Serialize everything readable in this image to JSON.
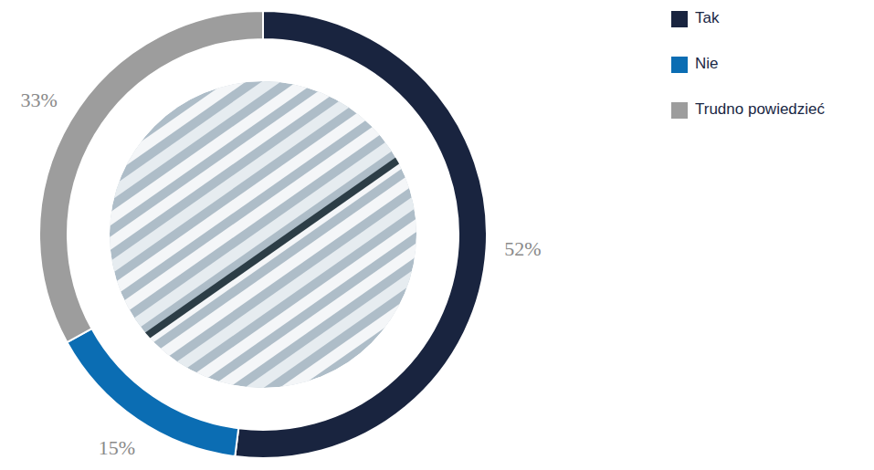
{
  "chart_data": {
    "type": "pie",
    "categories": [
      "Tak",
      "Nie",
      "Trudno powiedzieć"
    ],
    "values": [
      52,
      15,
      33
    ],
    "value_labels": [
      "52%",
      "15%",
      "33%"
    ],
    "colors": [
      "#19243f",
      "#0b6db3",
      "#9d9d9d"
    ],
    "data_labels": true,
    "legend": "top-right"
  }
}
